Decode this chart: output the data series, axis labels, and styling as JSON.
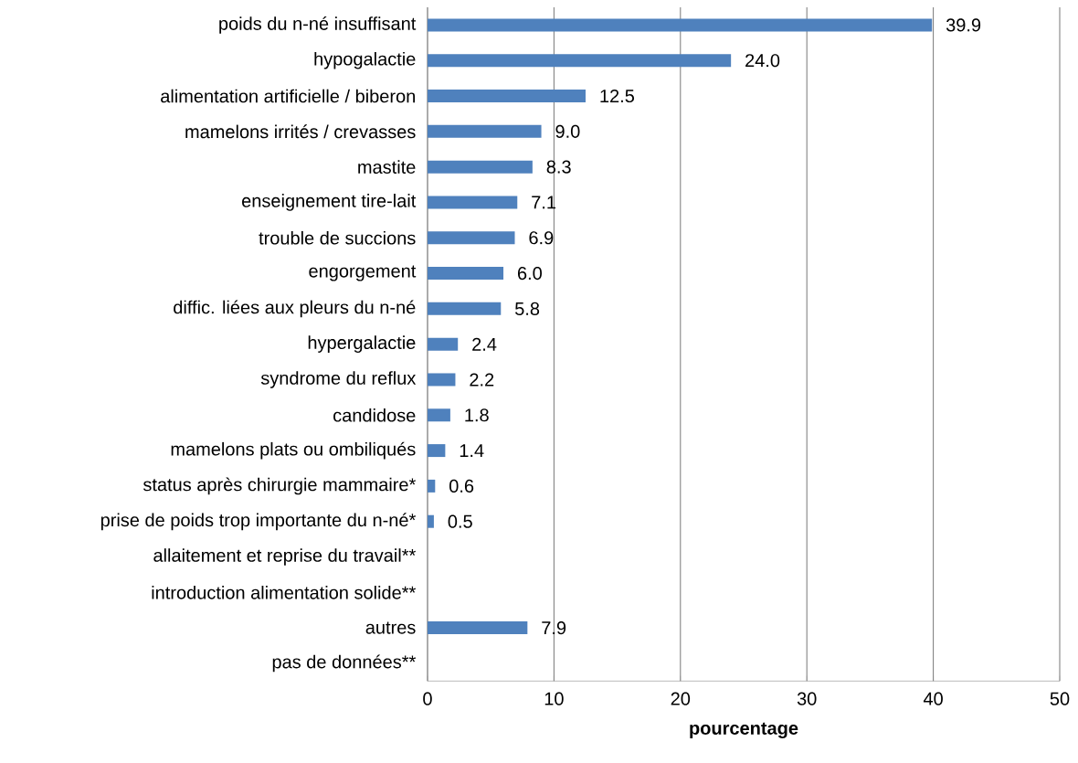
{
  "chart_data": {
    "type": "bar",
    "orientation": "horizontal",
    "categories": [
      "poids du n-né insuffisant",
      "hypogalactie",
      "alimentation artificielle / biberon",
      "mamelons irrités / crevasses",
      "mastite",
      "enseignement tire-lait",
      "trouble de succions",
      "engorgement",
      "diffic. liées aux pleurs du n-né",
      "hypergalactie",
      "syndrome du reflux",
      "candidose",
      "mamelons plats ou ombiliqués",
      "status après chirurgie mammaire*",
      "prise de poids trop importante du n-né*",
      "allaitement et reprise du travail**",
      "introduction alimentation solide**",
      "autres",
      "pas de données**"
    ],
    "values": [
      39.9,
      24.0,
      12.5,
      9.0,
      8.3,
      7.1,
      6.9,
      6.0,
      5.8,
      2.4,
      2.2,
      1.8,
      1.4,
      0.6,
      0.5,
      null,
      null,
      7.9,
      null
    ],
    "value_labels": [
      "39.9",
      "24.0",
      "12.5",
      "9.0",
      "8.3",
      "7.1",
      "6.9",
      "6.0",
      "5.8",
      "2.4",
      "2.2",
      "1.8",
      "1.4",
      "0.6",
      "0.5",
      null,
      null,
      "7.9",
      null
    ],
    "color": "#4f81bd",
    "xlabel": "pourcentage",
    "xlim": [
      0,
      50
    ],
    "xticks": [
      0,
      10,
      20,
      30,
      40,
      50
    ],
    "grid": "x"
  }
}
